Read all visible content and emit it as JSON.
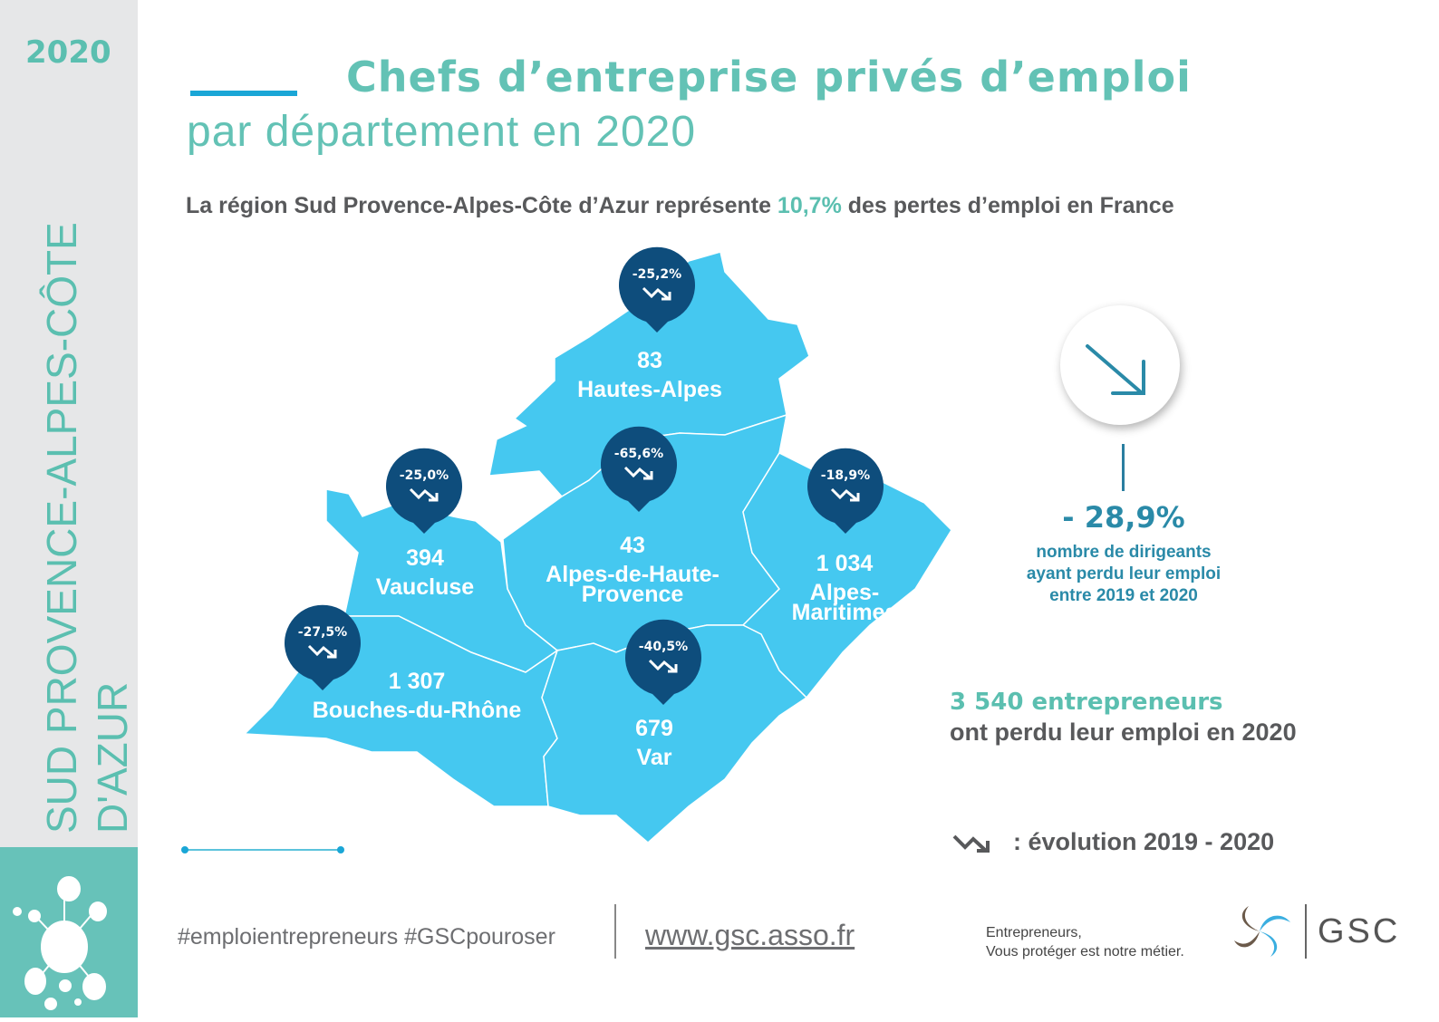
{
  "sidebar": {
    "year": "2020",
    "region": "SUD PROVENCE-ALPES-CÔTE D'AZUR"
  },
  "header": {
    "title_line1": "Chefs d’entreprise privés d’emploi",
    "title_line2": "par département en 2020"
  },
  "subtitle": {
    "before": "La région Sud Provence-Alpes-Côte d’Azur représente ",
    "highlight": "10,7%",
    "after": " des pertes d’emploi en France"
  },
  "departments": [
    {
      "name": "Hautes-Alpes",
      "count": "83",
      "evolution": "-25,2%"
    },
    {
      "name": "Vaucluse",
      "count": "394",
      "evolution": "-25,0%"
    },
    {
      "name": "Alpes-de-Haute-Provence",
      "name_lines": [
        "Alpes-de-Haute-",
        "Provence"
      ],
      "count": "43",
      "evolution": "-65,6%"
    },
    {
      "name": "Alpes-Maritimes",
      "name_lines": [
        "Alpes-",
        "Maritimes"
      ],
      "count": "1 034",
      "evolution": "-18,9%"
    },
    {
      "name": "Bouches-du-Rhône",
      "count": "1 307",
      "evolution": "-27,5%"
    },
    {
      "name": "Var",
      "count": "679",
      "evolution": "-40,5%"
    }
  ],
  "summary": {
    "percent": "- 28,9%",
    "description_lines": [
      "nombre de dirigeants",
      "ayant perdu leur emploi",
      "entre 2019 et 2020"
    ],
    "total_highlight": "3 540 entrepreneurs",
    "total_rest": "ont perdu leur emploi en 2020"
  },
  "legend": {
    "label": ": évolution  2019 - 2020"
  },
  "footer": {
    "hashtags": "#emploientrepreneurs #GSCpouroser",
    "url": "www.gsc.asso.fr",
    "tagline_line1": "Entrepreneurs,",
    "tagline_line2": "Vous protéger est notre métier.",
    "brand": "GSC"
  },
  "colors": {
    "teal": "#5bbfb0",
    "map": "#45c8f0",
    "pin": "#0e4d7c"
  }
}
